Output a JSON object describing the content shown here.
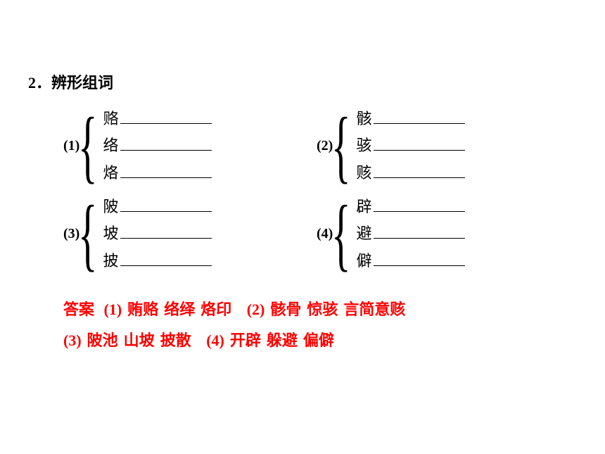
{
  "title": "2．辨形组词",
  "groups": [
    {
      "number": "(1)",
      "chars": [
        "赂",
        "络",
        "烙"
      ]
    },
    {
      "number": "(2)",
      "chars": [
        "骸",
        "骇",
        "赅"
      ]
    },
    {
      "number": "(3)",
      "chars": [
        "陂",
        "坡",
        "披"
      ]
    },
    {
      "number": "(4)",
      "chars": [
        "辟",
        "避",
        "僻"
      ]
    }
  ],
  "answer_label": "答案",
  "answers": [
    {
      "num": "(1)",
      "words": [
        "贿赂",
        "络绎",
        "烙印"
      ]
    },
    {
      "num": "(2)",
      "words": [
        "骸骨",
        "惊骇",
        "言简意赅"
      ]
    },
    {
      "num": "(3)",
      "words": [
        "陂池",
        "山坡",
        "披散"
      ]
    },
    {
      "num": "(4)",
      "words": [
        "开辟",
        "躲避",
        "偏僻"
      ]
    }
  ],
  "colors": {
    "text": "#000000",
    "answer": "#ff0000",
    "background": "#ffffff"
  },
  "fonts": {
    "title_size": 22,
    "char_size": 22,
    "answer_size": 22
  }
}
